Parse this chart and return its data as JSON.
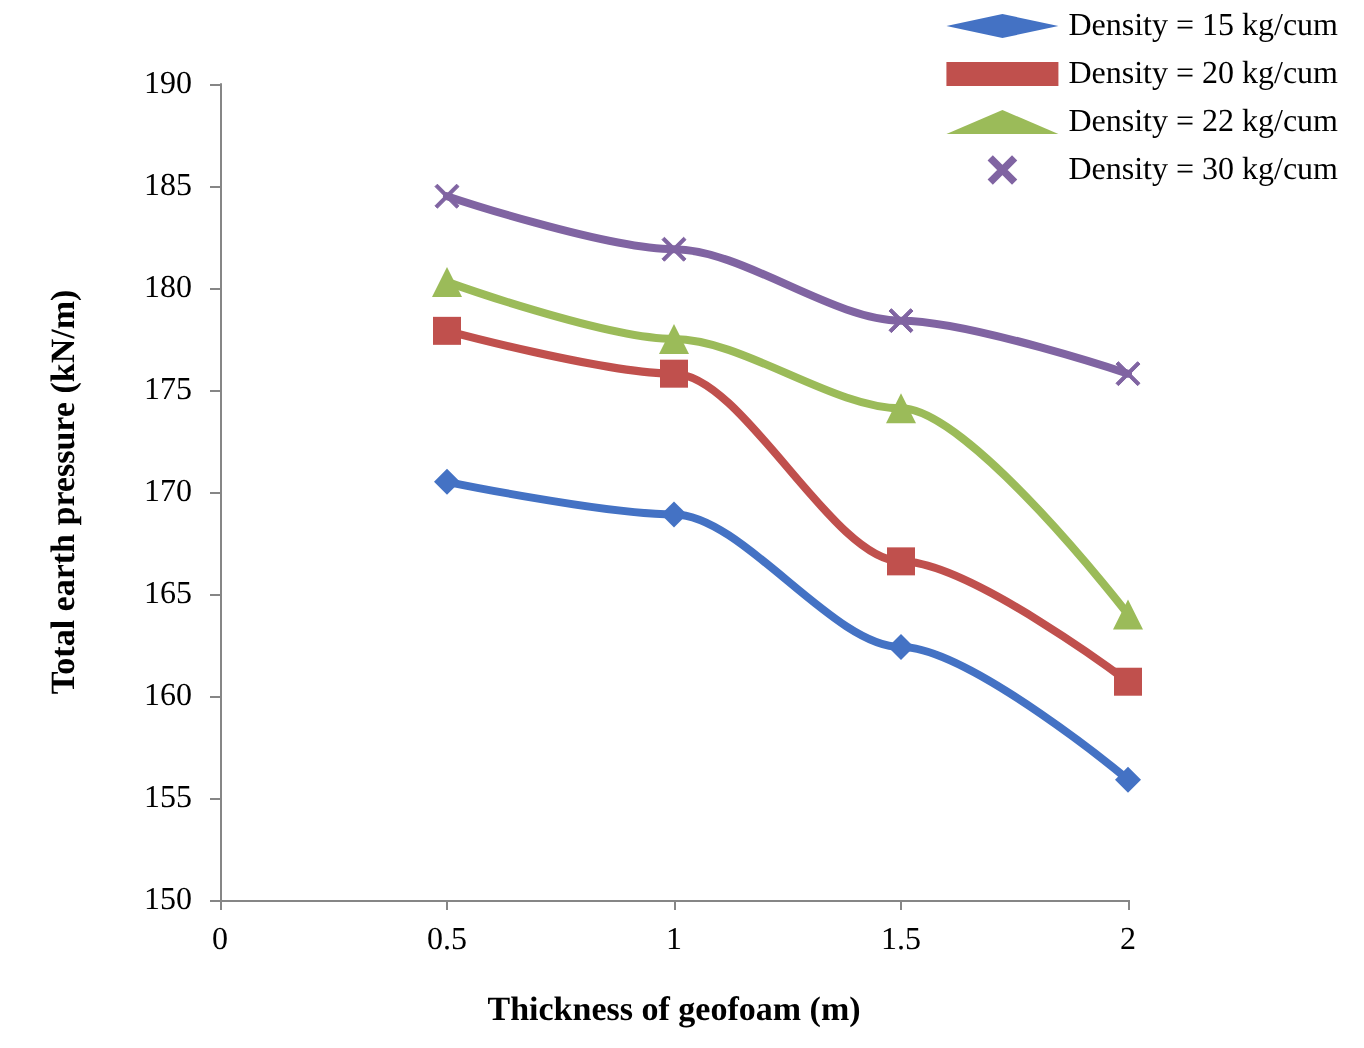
{
  "chart_data": {
    "type": "line",
    "xlabel": "Thickness of geofoam (m)",
    "ylabel": "Total earth pressure (kN/m)",
    "x": [
      0.5,
      1,
      1.5,
      2
    ],
    "xlim": [
      0,
      2
    ],
    "xticks": [
      0,
      0.5,
      1,
      1.5,
      2
    ],
    "ylim": [
      150,
      190
    ],
    "yticks": [
      150,
      155,
      160,
      165,
      170,
      175,
      180,
      185,
      190
    ],
    "series": [
      {
        "name": "Density = 15 kg/cum",
        "color": "#4472c4",
        "marker": "diamond",
        "values": [
          170.5,
          168.9,
          162.4,
          155.9
        ]
      },
      {
        "name": "Density = 20 kg/cum",
        "color": "#c0504d",
        "marker": "square",
        "values": [
          177.9,
          175.8,
          166.6,
          160.7
        ]
      },
      {
        "name": "Density = 22 kg/cum",
        "color": "#9bbb59",
        "marker": "triangle",
        "values": [
          180.3,
          177.5,
          174.1,
          164.0
        ]
      },
      {
        "name": "Density = 30 kg/cum",
        "color": "#8064a2",
        "marker": "cross",
        "values": [
          184.5,
          181.9,
          178.4,
          175.8
        ]
      }
    ],
    "legend": "top right",
    "grid": false
  }
}
